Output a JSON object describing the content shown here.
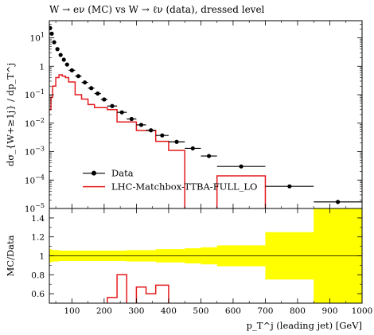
{
  "chart_data": [
    {
      "type": "line",
      "title": "W → eν (MC) vs W → ℓν (data), dressed level",
      "ylabel": "dσ_{W+≥1j} / dp_T^j",
      "xlim": [
        30,
        1000
      ],
      "ylim": [
        1e-05,
        40
      ],
      "yscale": "log",
      "ytick_labels": [
        "10^{-5}",
        "10^{-4}",
        "10^{-3}",
        "10^{-2}",
        "10^{-1}",
        "1",
        "10^{1}"
      ],
      "legend": {
        "placement": "center-left",
        "entries": [
          "Data",
          "LHC-Matchbox-TTBA-FULL_LO"
        ]
      },
      "series": [
        {
          "name": "Data",
          "style": "points-with-xerr",
          "color": "#000000",
          "points": [
            {
              "x": 32.5,
              "xlo": 30,
              "xhi": 35,
              "y": 22
            },
            {
              "x": 37.5,
              "xlo": 35,
              "xhi": 40,
              "y": 14
            },
            {
              "x": 45,
              "xlo": 40,
              "xhi": 50,
              "y": 7
            },
            {
              "x": 55,
              "xlo": 50,
              "xhi": 60,
              "y": 4
            },
            {
              "x": 65,
              "xlo": 60,
              "xhi": 70,
              "y": 2.5
            },
            {
              "x": 75,
              "xlo": 70,
              "xhi": 80,
              "y": 1.7
            },
            {
              "x": 85,
              "xlo": 80,
              "xhi": 90,
              "y": 1.15
            },
            {
              "x": 100,
              "xlo": 90,
              "xhi": 110,
              "y": 0.72
            },
            {
              "x": 120,
              "xlo": 110,
              "xhi": 130,
              "y": 0.45
            },
            {
              "x": 140,
              "xlo": 130,
              "xhi": 150,
              "y": 0.27
            },
            {
              "x": 160,
              "xlo": 150,
              "xhi": 170,
              "y": 0.17
            },
            {
              "x": 180,
              "xlo": 170,
              "xhi": 190,
              "y": 0.11
            },
            {
              "x": 200,
              "xlo": 190,
              "xhi": 210,
              "y": 0.068
            },
            {
              "x": 225,
              "xlo": 210,
              "xhi": 240,
              "y": 0.04
            },
            {
              "x": 255,
              "xlo": 240,
              "xhi": 270,
              "y": 0.024
            },
            {
              "x": 285,
              "xlo": 270,
              "xhi": 300,
              "y": 0.014
            },
            {
              "x": 315,
              "xlo": 300,
              "xhi": 330,
              "y": 0.0087
            },
            {
              "x": 345,
              "xlo": 330,
              "xhi": 360,
              "y": 0.0056
            },
            {
              "x": 380,
              "xlo": 360,
              "xhi": 400,
              "y": 0.0037
            },
            {
              "x": 425,
              "xlo": 400,
              "xhi": 450,
              "y": 0.0022
            },
            {
              "x": 475,
              "xlo": 450,
              "xhi": 500,
              "y": 0.0013
            },
            {
              "x": 525,
              "xlo": 500,
              "xhi": 550,
              "y": 0.0007
            },
            {
              "x": 625,
              "xlo": 550,
              "xhi": 700,
              "y": 0.0003
            },
            {
              "x": 775,
              "xlo": 700,
              "xhi": 850,
              "y": 6e-05
            },
            {
              "x": 925,
              "xlo": 850,
              "xhi": 1000,
              "y": 1.7e-05
            }
          ]
        },
        {
          "name": "LHC-Matchbox-TTBA-FULL_LO",
          "style": "histogram",
          "color": "#e41a1c",
          "edges": [
            30,
            35,
            40,
            50,
            60,
            70,
            80,
            90,
            110,
            130,
            150,
            170,
            190,
            210,
            240,
            270,
            300,
            330,
            360,
            400,
            450,
            500,
            550,
            700,
            850,
            1000
          ],
          "values": [
            0.03,
            0.08,
            0.2,
            0.4,
            0.5,
            0.45,
            0.4,
            0.28,
            0.1,
            0.07,
            0.045,
            0.035,
            0.035,
            0.03,
            0.011,
            0.011,
            0.0055,
            0.0055,
            0.0023,
            0.0011,
            0,
            0,
            0.00014,
            0,
            0
          ]
        }
      ]
    },
    {
      "type": "line",
      "xlabel": "p_T^j (leading jet) [GeV]",
      "ylabel": "MC/Data",
      "xlim": [
        30,
        1000
      ],
      "ylim": [
        0.5,
        1.5
      ],
      "xticks": [
        100,
        200,
        300,
        400,
        500,
        600,
        700,
        800,
        900,
        1000
      ],
      "yticks": [
        0.6,
        0.8,
        1,
        1.2,
        1.4
      ],
      "reference_line": 1,
      "band": {
        "color": "#ffff00",
        "edges": [
          30,
          35,
          40,
          50,
          60,
          70,
          80,
          90,
          110,
          130,
          150,
          170,
          190,
          210,
          240,
          270,
          300,
          330,
          360,
          400,
          450,
          500,
          550,
          700,
          850,
          1000
        ],
        "half_widths": [
          0.07,
          0.065,
          0.06,
          0.06,
          0.055,
          0.055,
          0.055,
          0.055,
          0.055,
          0.055,
          0.055,
          0.055,
          0.055,
          0.055,
          0.055,
          0.06,
          0.06,
          0.06,
          0.07,
          0.07,
          0.08,
          0.09,
          0.11,
          0.25,
          0.5
        ]
      },
      "series": [
        {
          "name": "LHC-Matchbox-TTBA-FULL_LO",
          "style": "histogram",
          "color": "#e41a1c",
          "edges": [
            30,
            35,
            40,
            50,
            60,
            70,
            80,
            90,
            110,
            130,
            150,
            170,
            190,
            210,
            240,
            270,
            300,
            330,
            360,
            400,
            450,
            500,
            550,
            700,
            850,
            1000
          ],
          "values": [
            null,
            null,
            null,
            null,
            null,
            null,
            null,
            null,
            null,
            null,
            null,
            null,
            null,
            0.56,
            0.8,
            0.47,
            0.67,
            0.6,
            0.69,
            0.46,
            null,
            null,
            null,
            null,
            null
          ]
        }
      ]
    }
  ]
}
